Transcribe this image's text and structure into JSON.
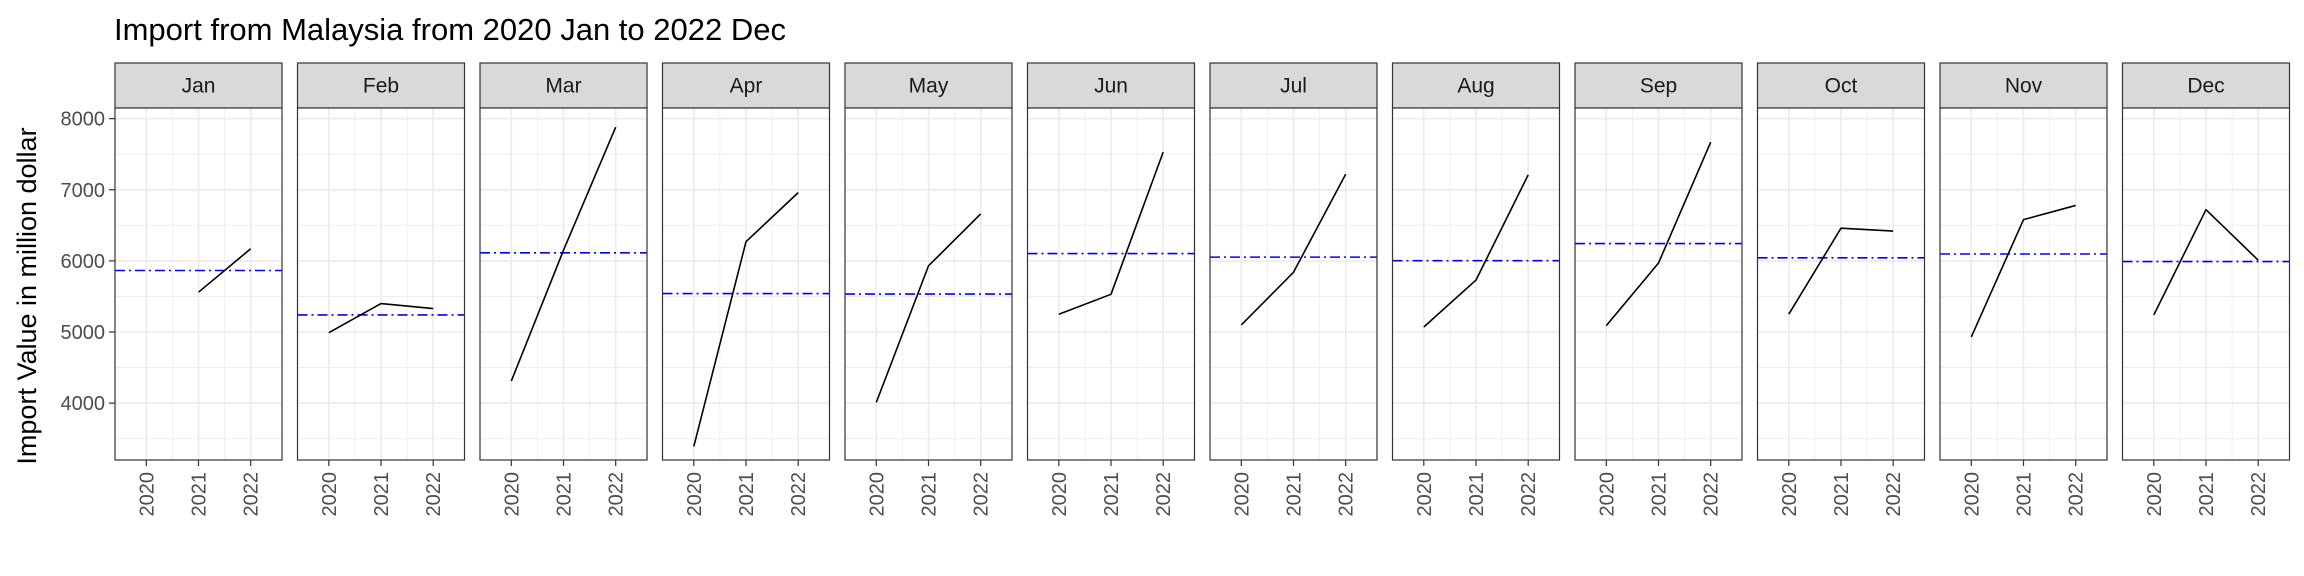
{
  "chart_data": {
    "type": "line",
    "title": "Import from Malaysia from 2020 Jan to 2022 Dec",
    "ylabel": "Import Value in million dollar",
    "xlabel": "",
    "x": [
      "2020",
      "2021",
      "2022"
    ],
    "yticks": [
      "4000",
      "5000",
      "6000",
      "7000",
      "8000"
    ],
    "ylim": [
      3200,
      8150
    ],
    "grid": true,
    "colors": {
      "line": "#000000",
      "mean_line": "#0000ff",
      "strip_bg": "#d9d9d9",
      "grid": "#ebebeb"
    },
    "panels": [
      {
        "name": "Jan",
        "values": [
          null,
          5560,
          6170
        ],
        "mean": 5865
      },
      {
        "name": "Feb",
        "values": [
          4990,
          5400,
          5330
        ],
        "mean": 5240
      },
      {
        "name": "Mar",
        "values": [
          4310,
          6150,
          7880
        ],
        "mean": 6113
      },
      {
        "name": "Apr",
        "values": [
          3390,
          6270,
          6960
        ],
        "mean": 5540
      },
      {
        "name": "May",
        "values": [
          4010,
          5930,
          6660
        ],
        "mean": 5533
      },
      {
        "name": "Jun",
        "values": [
          5250,
          5530,
          7530
        ],
        "mean": 6103
      },
      {
        "name": "Jul",
        "values": [
          5100,
          5840,
          7220
        ],
        "mean": 6053
      },
      {
        "name": "Aug",
        "values": [
          5070,
          5730,
          7210
        ],
        "mean": 6003
      },
      {
        "name": "Sep",
        "values": [
          5090,
          5970,
          7670
        ],
        "mean": 6243
      },
      {
        "name": "Oct",
        "values": [
          5250,
          6460,
          6420
        ],
        "mean": 6043
      },
      {
        "name": "Nov",
        "values": [
          4930,
          6580,
          6780
        ],
        "mean": 6097
      },
      {
        "name": "Dec",
        "values": [
          5240,
          6720,
          6010
        ],
        "mean": 5990
      }
    ]
  }
}
